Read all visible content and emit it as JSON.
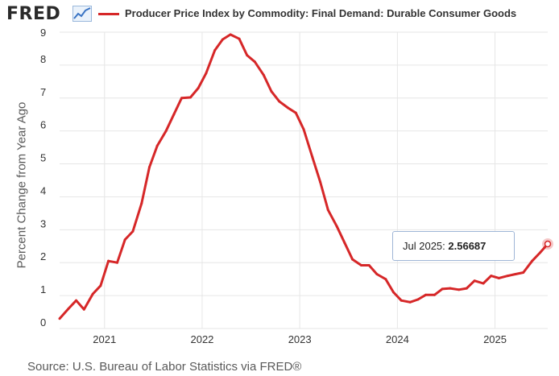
{
  "header": {
    "logo_text": "FRED",
    "legend_label": "Producer Price Index by Commodity: Final Demand: Durable Consumer Goods"
  },
  "colors": {
    "series": "#d62728",
    "grid": "#e6e6e6",
    "tooltip_border": "#9fb6d6"
  },
  "tooltip": {
    "date_label": "Jul 2025:",
    "value_label": "2.56687"
  },
  "source": "Source: U.S. Bureau of Labor Statistics via FRED®",
  "chart_data": {
    "type": "line",
    "title": "Producer Price Index by Commodity: Final Demand: Durable Consumer Goods",
    "xlabel": "",
    "ylabel": "Percent Change from Year Ago",
    "ylim": [
      0,
      9
    ],
    "yticks": [
      0,
      1,
      2,
      3,
      4,
      5,
      6,
      7,
      8,
      9
    ],
    "xticks": [
      {
        "label": "2021",
        "t": 2021.0
      },
      {
        "label": "2022",
        "t": 2022.0
      },
      {
        "label": "2023",
        "t": 2023.0
      },
      {
        "label": "2024",
        "t": 2024.0
      },
      {
        "label": "2025",
        "t": 2025.0
      }
    ],
    "xlim": [
      2020.54,
      2025.54
    ],
    "grid": true,
    "series": [
      {
        "name": "Producer Price Index by Commodity: Final Demand: Durable Consumer Goods",
        "t": [
          2020.54,
          2020.63,
          2020.71,
          2020.79,
          2020.88,
          2020.96,
          2021.04,
          2021.13,
          2021.21,
          2021.29,
          2021.38,
          2021.46,
          2021.54,
          2021.63,
          2021.71,
          2021.79,
          2021.88,
          2021.96,
          2022.04,
          2022.13,
          2022.21,
          2022.29,
          2022.38,
          2022.46,
          2022.54,
          2022.63,
          2022.71,
          2022.79,
          2022.88,
          2022.96,
          2023.04,
          2023.13,
          2023.21,
          2023.29,
          2023.38,
          2023.46,
          2023.54,
          2023.63,
          2023.71,
          2023.79,
          2023.88,
          2023.96,
          2024.04,
          2024.13,
          2024.21,
          2024.29,
          2024.38,
          2024.46,
          2024.54,
          2024.63,
          2024.71,
          2024.79,
          2024.88,
          2024.96,
          2025.04,
          2025.13,
          2025.21,
          2025.29,
          2025.38,
          2025.46,
          2025.54
        ],
        "values": [
          0.3,
          0.6,
          0.85,
          0.58,
          1.05,
          1.3,
          2.05,
          2.0,
          2.7,
          2.95,
          3.8,
          4.9,
          5.55,
          6.0,
          6.5,
          7.0,
          7.02,
          7.3,
          7.75,
          8.45,
          8.78,
          8.93,
          8.8,
          8.3,
          8.1,
          7.7,
          7.2,
          6.9,
          6.7,
          6.55,
          6.05,
          5.2,
          4.45,
          3.6,
          3.1,
          2.6,
          2.1,
          1.92,
          1.92,
          1.65,
          1.5,
          1.1,
          0.85,
          0.8,
          0.88,
          1.02,
          1.02,
          1.2,
          1.22,
          1.18,
          1.22,
          1.45,
          1.37,
          1.6,
          1.53,
          1.6,
          1.65,
          1.7,
          2.05,
          2.3,
          2.56687
        ]
      }
    ]
  }
}
